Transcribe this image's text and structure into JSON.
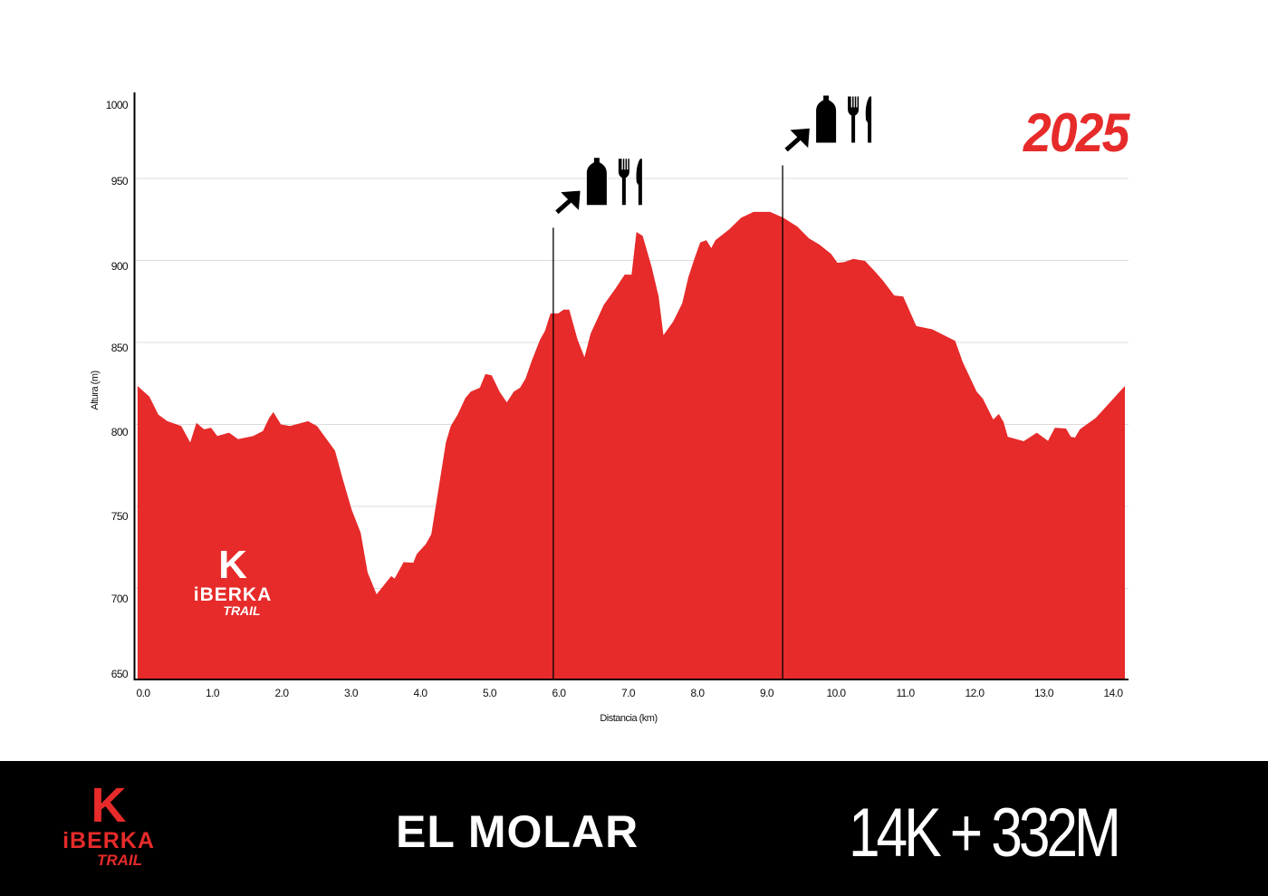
{
  "chart_data": {
    "type": "area",
    "title": "",
    "xlabel": "Distancia (km)",
    "ylabel": "Altura (m)",
    "xlim": [
      0,
      14
    ],
    "ylim": [
      650,
      1000
    ],
    "grid": true,
    "x_ticks": [
      "0.0",
      "1.0",
      "2.0",
      "3.0",
      "4.0",
      "5.0",
      "6.0",
      "7.0",
      "8.0",
      "9.0",
      "10.0",
      "11.0",
      "12.0",
      "13.0",
      "14.0"
    ],
    "y_ticks": [
      "650",
      "700",
      "750",
      "800",
      "850",
      "900",
      "950",
      "1000"
    ],
    "fill_color": "#e62b2a",
    "series": [
      {
        "name": "Elevation",
        "x": [
          -0.08,
          0.09,
          0.22,
          0.35,
          0.55,
          0.68,
          0.77,
          0.88,
          0.98,
          1.07,
          1.24,
          1.37,
          1.59,
          1.73,
          1.82,
          1.88,
          1.99,
          2.12,
          2.38,
          2.51,
          2.64,
          2.77,
          2.88,
          3.01,
          3.14,
          3.24,
          3.37,
          3.58,
          3.63,
          3.76,
          3.9,
          3.95,
          4.08,
          4.16,
          4.37,
          4.44,
          4.54,
          4.65,
          4.73,
          4.86,
          4.94,
          5.03,
          5.15,
          5.25,
          5.35,
          5.44,
          5.52,
          5.61,
          5.73,
          5.8,
          5.88,
          5.99,
          6.07,
          6.15,
          6.27,
          6.37,
          6.46,
          6.65,
          6.82,
          6.95,
          7.05,
          7.12,
          7.21,
          7.34,
          7.44,
          7.51,
          7.65,
          7.78,
          7.87,
          7.96,
          8.04,
          8.13,
          8.2,
          8.26,
          8.46,
          8.63,
          8.81,
          9.05,
          9.24,
          9.44,
          9.61,
          9.76,
          9.93,
          10.02,
          10.12,
          10.25,
          10.42,
          10.57,
          10.68,
          10.84,
          10.97,
          11.16,
          11.39,
          11.72,
          11.83,
          12.03,
          12.12,
          12.27,
          12.35,
          12.42,
          12.48,
          12.71,
          12.9,
          13.06,
          13.16,
          13.32,
          13.39,
          13.45,
          13.52,
          13.75,
          14.17
        ],
        "y": [
          823.5,
          817,
          806,
          802,
          799,
          789,
          801,
          797,
          798,
          793,
          795,
          791,
          793,
          796,
          804,
          807.5,
          800,
          799,
          802,
          799,
          791.5,
          784,
          767,
          748,
          734,
          709.7,
          696.4,
          707.5,
          706,
          716,
          715.7,
          721,
          727,
          733,
          789,
          799,
          806,
          816,
          820,
          822.4,
          830.7,
          830,
          819.6,
          813.5,
          820,
          822.4,
          828,
          839,
          851.7,
          857,
          867.7,
          867.7,
          870,
          870,
          851.7,
          841,
          855.5,
          873,
          883,
          891.4,
          891.4,
          917.4,
          915,
          896,
          878,
          854.4,
          862.7,
          873.8,
          890,
          901.4,
          911,
          912.4,
          907.5,
          912.4,
          919,
          926,
          929.6,
          929.6,
          926,
          920.7,
          913.5,
          909.7,
          904,
          898.6,
          899,
          901,
          899.7,
          893,
          887.6,
          878.7,
          878,
          860,
          858,
          851,
          838,
          820,
          815.7,
          803,
          806.4,
          801.4,
          792.5,
          789.8,
          795,
          790,
          798,
          797.5,
          792.5,
          792,
          797,
          804,
          823.5
        ]
      }
    ],
    "annotations": [
      {
        "label": "aid-station",
        "km": 5.92,
        "marker_top_m": 920,
        "icons": [
          "arrow-icon",
          "water-bottle-icon",
          "fork-icon",
          "knife-icon"
        ]
      },
      {
        "label": "aid-station",
        "km": 9.23,
        "marker_top_m": 958,
        "icons": [
          "arrow-icon",
          "water-bottle-icon",
          "fork-icon",
          "knife-icon"
        ]
      }
    ]
  },
  "year": "2025",
  "logo": {
    "letter": "K",
    "brand": "iBERKA",
    "sub": "TRAIL",
    "color": "#e62b2a"
  },
  "footer": {
    "race_name": "EL MOLAR",
    "stats": "14K + 332M"
  }
}
